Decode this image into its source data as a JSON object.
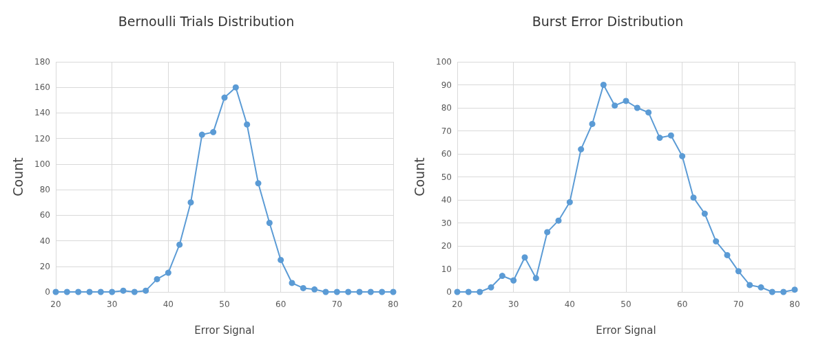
{
  "chart_data": [
    {
      "type": "line",
      "title": "Bernoulli Trials Distribution",
      "xlabel": "Error Signal",
      "ylabel": "Count",
      "x": [
        20,
        22,
        24,
        26,
        28,
        30,
        32,
        34,
        36,
        38,
        40,
        42,
        44,
        46,
        48,
        50,
        52,
        54,
        56,
        58,
        60,
        62,
        64,
        66,
        68,
        70,
        72,
        74,
        76,
        78,
        80
      ],
      "series": [
        {
          "color": "#5b9bd5",
          "values": [
            0,
            0,
            0,
            0,
            0,
            0,
            1,
            0,
            1,
            10,
            15,
            37,
            70,
            123,
            125,
            152,
            160,
            131,
            85,
            54,
            25,
            7,
            3,
            2,
            0,
            0,
            0,
            0,
            0,
            0,
            0
          ]
        }
      ],
      "xlim": [
        20,
        80
      ],
      "xticks": [
        20,
        30,
        40,
        50,
        60,
        70,
        80
      ],
      "ylim": [
        0,
        180
      ],
      "yticks": [
        0,
        20,
        40,
        60,
        80,
        100,
        120,
        140,
        160,
        180
      ],
      "grid": true,
      "marker": "circle"
    },
    {
      "type": "line",
      "title": "Burst Error Distribution",
      "xlabel": "Error Signal",
      "ylabel": "Count",
      "x": [
        20,
        22,
        24,
        26,
        28,
        30,
        32,
        34,
        36,
        38,
        40,
        42,
        44,
        46,
        48,
        50,
        52,
        54,
        56,
        58,
        60,
        62,
        64,
        66,
        68,
        70,
        72,
        74,
        76,
        78,
        80
      ],
      "series": [
        {
          "color": "#5b9bd5",
          "values": [
            0,
            0,
            0,
            2,
            7,
            5,
            15,
            6,
            26,
            31,
            39,
            62,
            73,
            90,
            81,
            83,
            80,
            78,
            67,
            68,
            59,
            41,
            34,
            22,
            16,
            9,
            3,
            2,
            0,
            0,
            1
          ]
        }
      ],
      "xlim": [
        20,
        80
      ],
      "xticks": [
        20,
        30,
        40,
        50,
        60,
        70,
        80
      ],
      "ylim": [
        0,
        100
      ],
      "yticks": [
        0,
        10,
        20,
        30,
        40,
        50,
        60,
        70,
        80,
        90,
        100
      ],
      "grid": true,
      "marker": "circle"
    }
  ]
}
